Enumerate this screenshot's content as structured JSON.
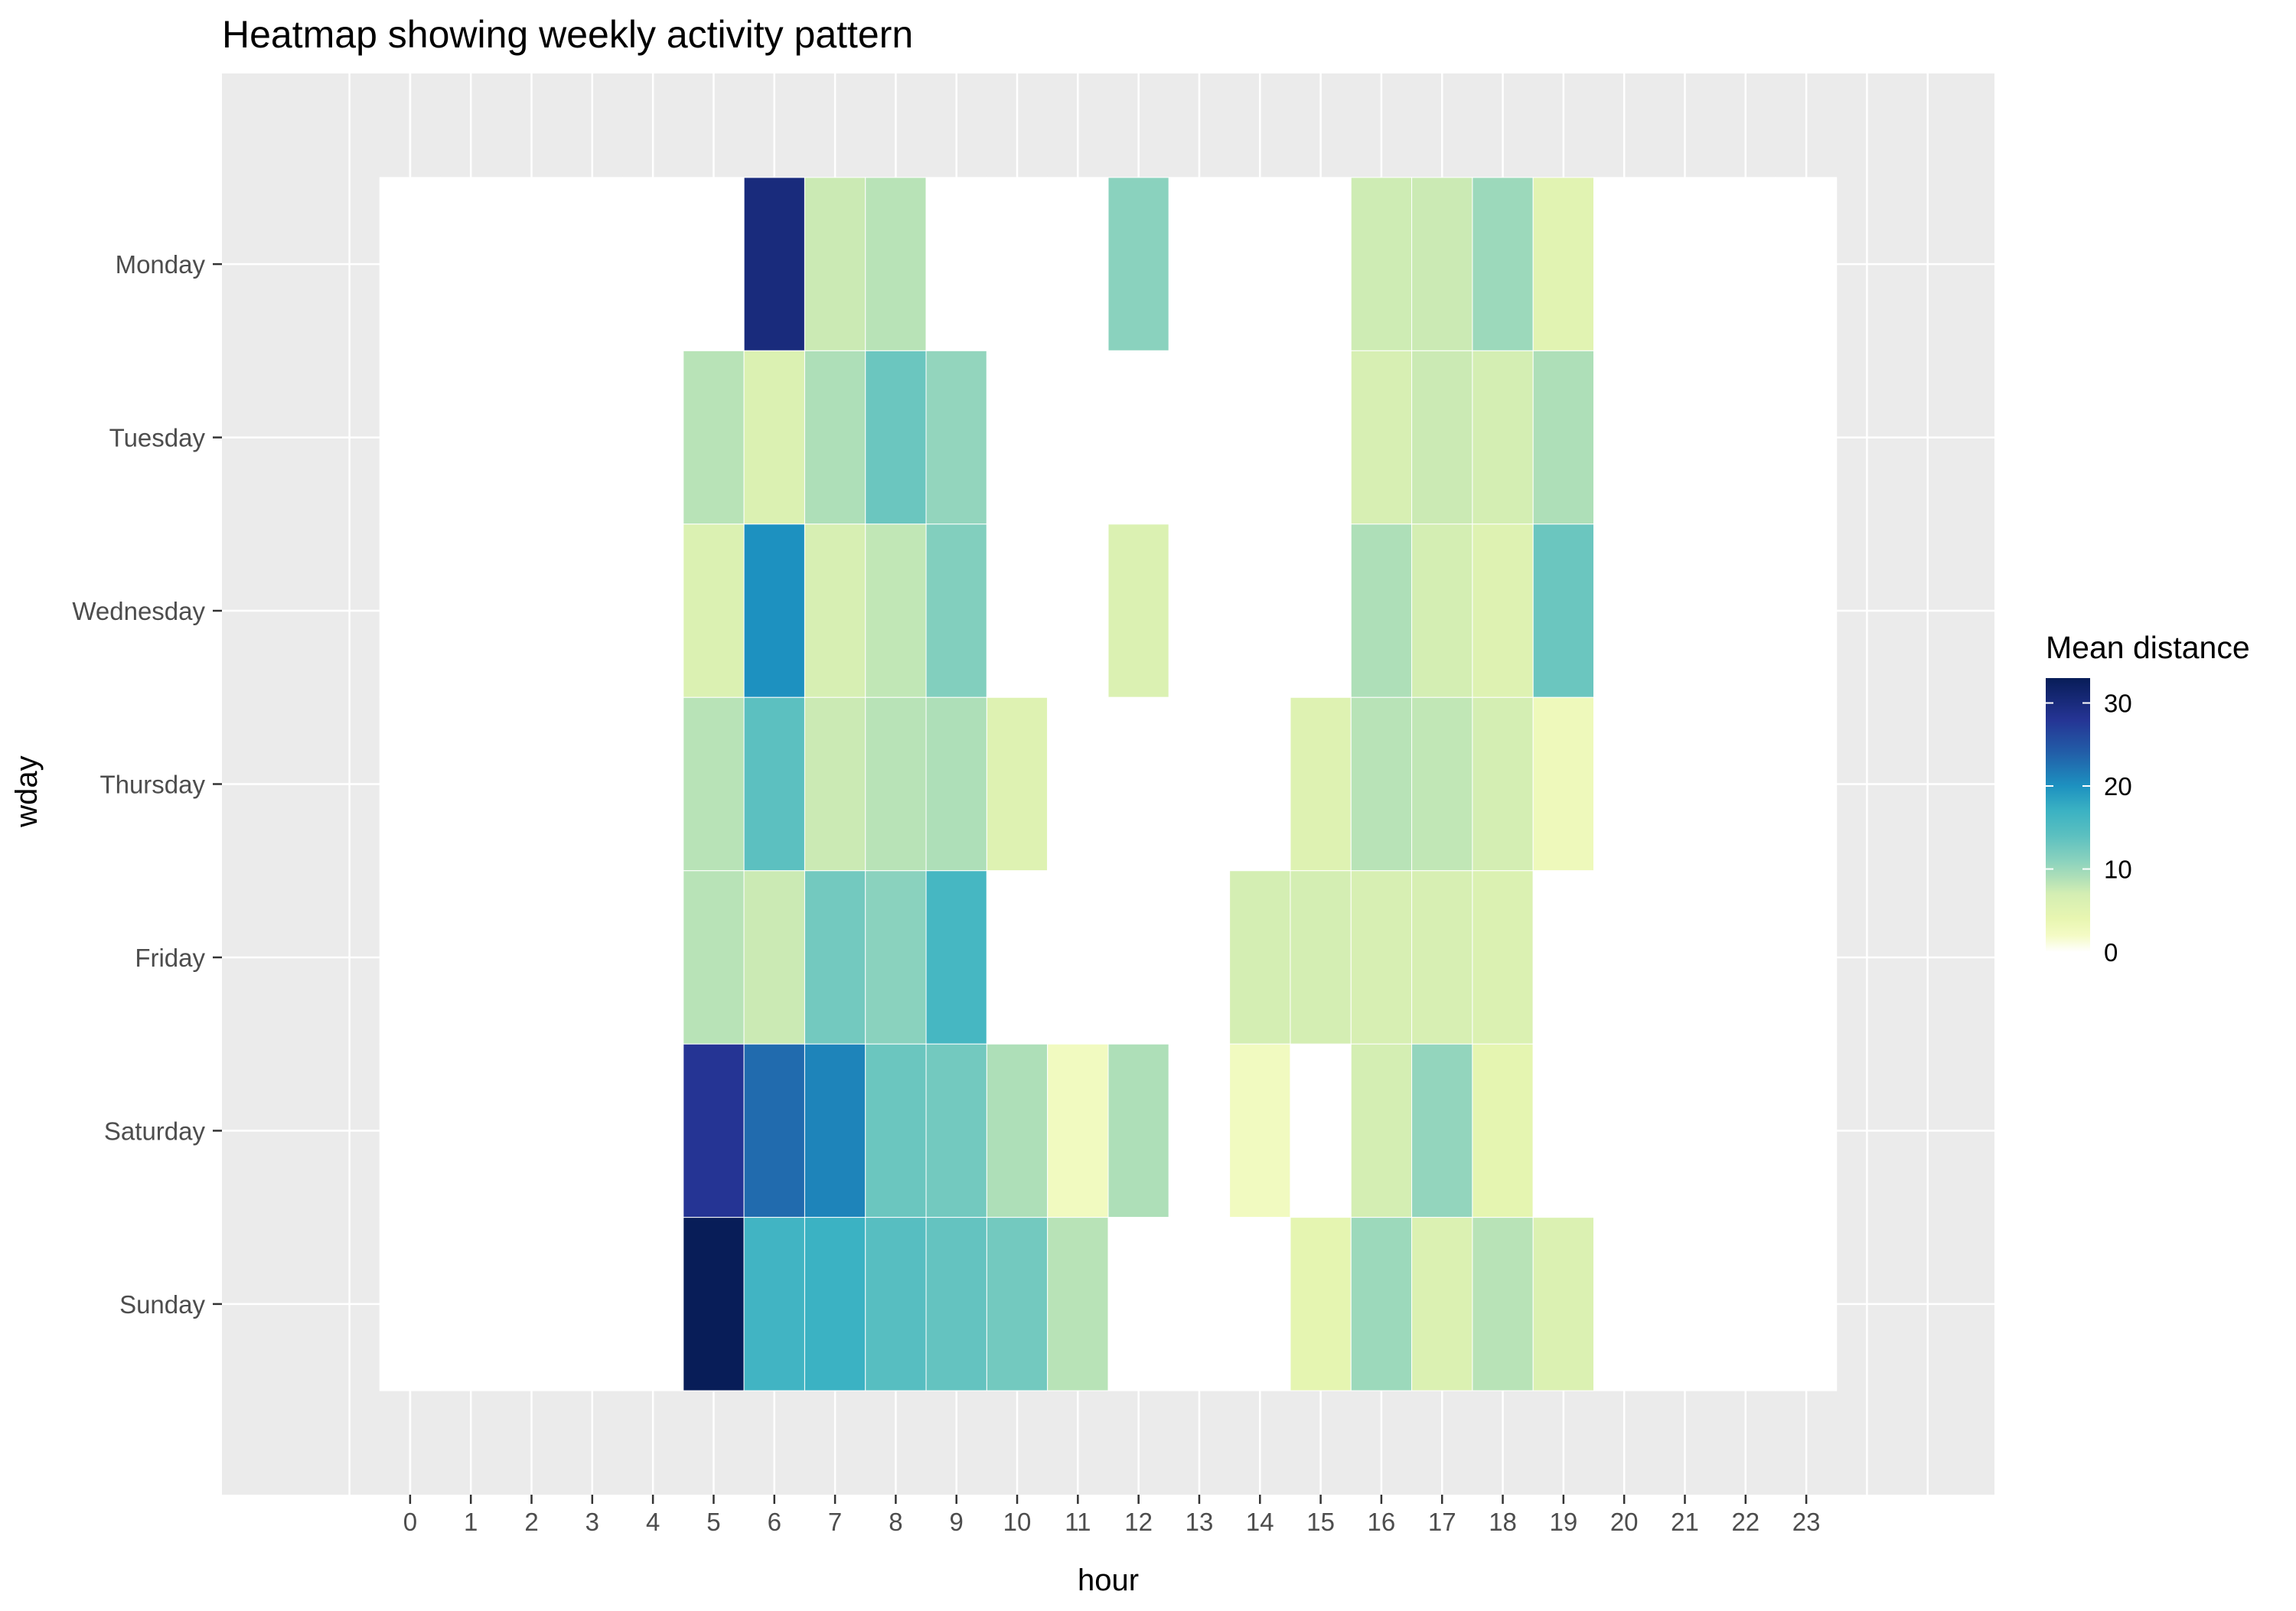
{
  "chart_data": {
    "type": "heatmap",
    "title": "Heatmap showing weekly activity pattern",
    "xlabel": "hour",
    "ylabel": "wday",
    "x_categories": [
      "0",
      "1",
      "2",
      "3",
      "4",
      "5",
      "6",
      "7",
      "8",
      "9",
      "10",
      "11",
      "12",
      "13",
      "14",
      "15",
      "16",
      "17",
      "18",
      "19",
      "20",
      "21",
      "22",
      "23"
    ],
    "y_categories": [
      "Monday",
      "Tuesday",
      "Wednesday",
      "Thursday",
      "Friday",
      "Saturday",
      "Sunday"
    ],
    "value_range": [
      0,
      33
    ],
    "colors": {
      "panel_background": "#ebebeb",
      "grid": "#ffffff",
      "tile_border": "#ffffff",
      "scale": [
        {
          "value": 0,
          "color": "#ffffff"
        },
        {
          "value": 2,
          "color": "#f4fbc5"
        },
        {
          "value": 4,
          "color": "#e8f6b1"
        },
        {
          "value": 7,
          "color": "#d4eeb3"
        },
        {
          "value": 9,
          "color": "#aedfb8"
        },
        {
          "value": 11,
          "color": "#8ad2be"
        },
        {
          "value": 14,
          "color": "#5cc0c0"
        },
        {
          "value": 17,
          "color": "#3bb2c3"
        },
        {
          "value": 20,
          "color": "#1d91c0"
        },
        {
          "value": 24,
          "color": "#225ea8"
        },
        {
          "value": 28,
          "color": "#253494"
        },
        {
          "value": 33,
          "color": "#081d58"
        }
      ]
    },
    "cells": [
      {
        "day": "Monday",
        "hour": 6,
        "value": 30
      },
      {
        "day": "Monday",
        "hour": 7,
        "value": 7.5
      },
      {
        "day": "Monday",
        "hour": 8,
        "value": 8.5
      },
      {
        "day": "Monday",
        "hour": 12,
        "value": 11
      },
      {
        "day": "Monday",
        "hour": 16,
        "value": 7.3
      },
      {
        "day": "Monday",
        "hour": 17,
        "value": 7.5
      },
      {
        "day": "Monday",
        "hour": 18,
        "value": 10
      },
      {
        "day": "Monday",
        "hour": 19,
        "value": 5
      },
      {
        "day": "Tuesday",
        "hour": 5,
        "value": 8.5
      },
      {
        "day": "Tuesday",
        "hour": 6,
        "value": 6
      },
      {
        "day": "Tuesday",
        "hour": 7,
        "value": 9
      },
      {
        "day": "Tuesday",
        "hour": 8,
        "value": 13
      },
      {
        "day": "Tuesday",
        "hour": 9,
        "value": 10.5
      },
      {
        "day": "Tuesday",
        "hour": 16,
        "value": 6.5
      },
      {
        "day": "Tuesday",
        "hour": 17,
        "value": 7.5
      },
      {
        "day": "Tuesday",
        "hour": 18,
        "value": 7
      },
      {
        "day": "Tuesday",
        "hour": 19,
        "value": 9
      },
      {
        "day": "Wednesday",
        "hour": 5,
        "value": 6
      },
      {
        "day": "Wednesday",
        "hour": 6,
        "value": 20
      },
      {
        "day": "Wednesday",
        "hour": 7,
        "value": 6.5
      },
      {
        "day": "Wednesday",
        "hour": 8,
        "value": 8
      },
      {
        "day": "Wednesday",
        "hour": 9,
        "value": 11.5
      },
      {
        "day": "Wednesday",
        "hour": 12,
        "value": 6
      },
      {
        "day": "Wednesday",
        "hour": 16,
        "value": 9
      },
      {
        "day": "Wednesday",
        "hour": 17,
        "value": 7
      },
      {
        "day": "Wednesday",
        "hour": 18,
        "value": 5.5
      },
      {
        "day": "Wednesday",
        "hour": 19,
        "value": 13
      },
      {
        "day": "Thursday",
        "hour": 5,
        "value": 8.5
      },
      {
        "day": "Thursday",
        "hour": 6,
        "value": 14
      },
      {
        "day": "Thursday",
        "hour": 7,
        "value": 7.5
      },
      {
        "day": "Thursday",
        "hour": 8,
        "value": 8.5
      },
      {
        "day": "Thursday",
        "hour": 9,
        "value": 9
      },
      {
        "day": "Thursday",
        "hour": 10,
        "value": 5.5
      },
      {
        "day": "Thursday",
        "hour": 15,
        "value": 5.5
      },
      {
        "day": "Thursday",
        "hour": 16,
        "value": 8.5
      },
      {
        "day": "Thursday",
        "hour": 17,
        "value": 8
      },
      {
        "day": "Thursday",
        "hour": 18,
        "value": 7
      },
      {
        "day": "Thursday",
        "hour": 19,
        "value": 3
      },
      {
        "day": "Friday",
        "hour": 5,
        "value": 8.5
      },
      {
        "day": "Friday",
        "hour": 6,
        "value": 7.5
      },
      {
        "day": "Friday",
        "hour": 7,
        "value": 12.5
      },
      {
        "day": "Friday",
        "hour": 8,
        "value": 11
      },
      {
        "day": "Friday",
        "hour": 9,
        "value": 16
      },
      {
        "day": "Friday",
        "hour": 14,
        "value": 7
      },
      {
        "day": "Friday",
        "hour": 15,
        "value": 7
      },
      {
        "day": "Friday",
        "hour": 16,
        "value": 6.5
      },
      {
        "day": "Friday",
        "hour": 17,
        "value": 6.5
      },
      {
        "day": "Friday",
        "hour": 18,
        "value": 6
      },
      {
        "day": "Saturday",
        "hour": 5,
        "value": 28
      },
      {
        "day": "Saturday",
        "hour": 6,
        "value": 23
      },
      {
        "day": "Saturday",
        "hour": 7,
        "value": 21
      },
      {
        "day": "Saturday",
        "hour": 8,
        "value": 13
      },
      {
        "day": "Saturday",
        "hour": 9,
        "value": 12.5
      },
      {
        "day": "Saturday",
        "hour": 10,
        "value": 9
      },
      {
        "day": "Saturday",
        "hour": 11,
        "value": 2.5
      },
      {
        "day": "Saturday",
        "hour": 12,
        "value": 9
      },
      {
        "day": "Saturday",
        "hour": 14,
        "value": 2.5
      },
      {
        "day": "Saturday",
        "hour": 16,
        "value": 7
      },
      {
        "day": "Saturday",
        "hour": 17,
        "value": 10.5
      },
      {
        "day": "Saturday",
        "hour": 18,
        "value": 4.5
      },
      {
        "day": "Sunday",
        "hour": 5,
        "value": 33
      },
      {
        "day": "Sunday",
        "hour": 6,
        "value": 16.5
      },
      {
        "day": "Sunday",
        "hour": 7,
        "value": 17
      },
      {
        "day": "Sunday",
        "hour": 8,
        "value": 14.5
      },
      {
        "day": "Sunday",
        "hour": 9,
        "value": 13.5
      },
      {
        "day": "Sunday",
        "hour": 10,
        "value": 12.5
      },
      {
        "day": "Sunday",
        "hour": 11,
        "value": 8.5
      },
      {
        "day": "Sunday",
        "hour": 15,
        "value": 4.5
      },
      {
        "day": "Sunday",
        "hour": 16,
        "value": 10
      },
      {
        "day": "Sunday",
        "hour": 17,
        "value": 6
      },
      {
        "day": "Sunday",
        "hour": 18,
        "value": 8.5
      },
      {
        "day": "Sunday",
        "hour": 19,
        "value": 6
      }
    ],
    "legend": {
      "title": "Mean distance",
      "position": "right",
      "ticks": [
        {
          "value": 30,
          "label": "30"
        },
        {
          "value": 20,
          "label": "20"
        },
        {
          "value": 10,
          "label": "10"
        },
        {
          "value": 0,
          "label": "0"
        }
      ]
    }
  }
}
